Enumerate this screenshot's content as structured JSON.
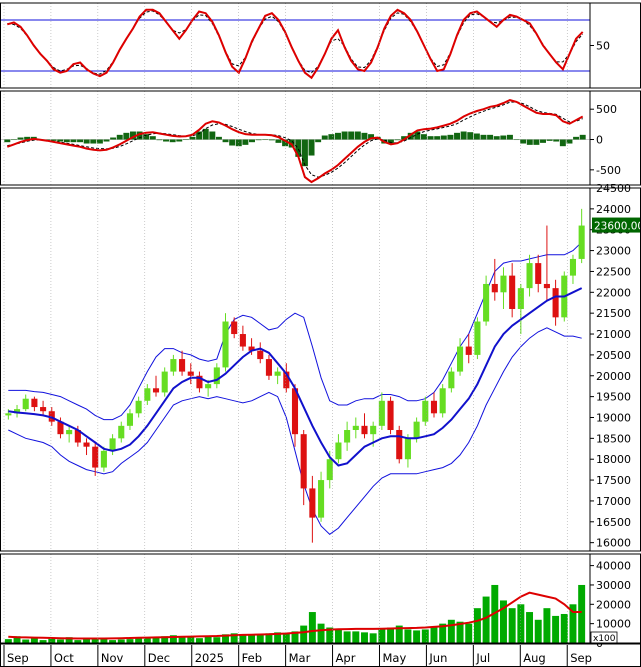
{
  "chart_data": {
    "type": "candlestick",
    "months": [
      "Sep",
      "Oct",
      "Nov",
      "Dec",
      "2025",
      "Feb",
      "Mar",
      "Apr",
      "May",
      "Jun",
      "Jul",
      "Aug",
      "Sep"
    ],
    "colors": {
      "up": "#66dd22",
      "down": "#dd1111",
      "bands": "#1111dd",
      "ma": "#1111cc",
      "lines": "#dd0000",
      "hist": "#116611",
      "volume": "#00aa00",
      "last_price_bg": "#006600",
      "last_price_fg": "#ffffff"
    },
    "oscillator": {
      "ticks": [
        50
      ],
      "ylim": [
        0,
        100
      ],
      "levels": [
        20,
        80
      ],
      "values": [
        75,
        77,
        72,
        62,
        50,
        40,
        32,
        22,
        18,
        20,
        28,
        30,
        22,
        17,
        14,
        18,
        30,
        45,
        58,
        70,
        84,
        92,
        92,
        88,
        78,
        68,
        58,
        68,
        80,
        90,
        88,
        78,
        62,
        42,
        25,
        18,
        35,
        55,
        70,
        85,
        88,
        80,
        66,
        48,
        32,
        18,
        12,
        24,
        40,
        58,
        68,
        48,
        32,
        22,
        20,
        30,
        48,
        70,
        85,
        92,
        88,
        80,
        66,
        50,
        34,
        20,
        22,
        40,
        62,
        80,
        88,
        90,
        84,
        78,
        72,
        80,
        86,
        84,
        80,
        76,
        64,
        50,
        40,
        30,
        22,
        40,
        58,
        66
      ]
    },
    "macd": {
      "ticks": [
        500,
        0,
        -500
      ],
      "ylim": [
        -750,
        800
      ],
      "values": [
        -120,
        -80,
        -40,
        -10,
        10,
        -5,
        -20,
        -40,
        -60,
        -80,
        -100,
        -120,
        -150,
        -170,
        -180,
        -170,
        -130,
        -80,
        -20,
        40,
        90,
        110,
        120,
        100,
        80,
        60,
        50,
        55,
        80,
        160,
        260,
        300,
        280,
        230,
        170,
        120,
        90,
        80,
        80,
        80,
        70,
        40,
        -20,
        -80,
        -280,
        -620,
        -700,
        -640,
        -560,
        -500,
        -420,
        -320,
        -220,
        -120,
        -40,
        20,
        30,
        -40,
        -80,
        -60,
        0,
        80,
        150,
        170,
        180,
        200,
        230,
        260,
        310,
        380,
        430,
        470,
        500,
        540,
        560,
        600,
        650,
        620,
        560,
        500,
        440,
        420,
        420,
        400,
        300,
        260,
        320,
        380
      ],
      "signal": [
        -100,
        -80,
        -55,
        -30,
        -10,
        -5,
        -15,
        -30,
        -45,
        -60,
        -80,
        -100,
        -120,
        -140,
        -150,
        -155,
        -145,
        -115,
        -70,
        -20,
        30,
        70,
        95,
        105,
        95,
        80,
        65,
        55,
        60,
        100,
        180,
        240,
        260,
        250,
        215,
        170,
        130,
        100,
        85,
        80,
        76,
        65,
        30,
        -20,
        -150,
        -420,
        -580,
        -620,
        -590,
        -540,
        -470,
        -380,
        -280,
        -180,
        -90,
        -20,
        10,
        -10,
        -50,
        -55,
        -25,
        30,
        90,
        130,
        155,
        175,
        200,
        225,
        260,
        320,
        375,
        425,
        465,
        505,
        535,
        570,
        615,
        620,
        590,
        540,
        480,
        445,
        430,
        415,
        350,
        290,
        300,
        345
      ]
    },
    "price": {
      "ticks": [
        24500,
        24000,
        23500,
        23000,
        22500,
        22000,
        21500,
        21000,
        20500,
        20000,
        19500,
        19000,
        18500,
        18000,
        17500,
        17000,
        16500,
        16000
      ],
      "ylim": [
        15800,
        24500
      ],
      "last_price": "23600.00",
      "candles": [
        [
          19050,
          19200,
          18950,
          19100
        ],
        [
          19100,
          19300,
          19000,
          19200
        ],
        [
          19200,
          19550,
          19150,
          19450
        ],
        [
          19450,
          19500,
          19150,
          19250
        ],
        [
          19250,
          19400,
          19050,
          19150
        ],
        [
          19150,
          19250,
          18800,
          18900
        ],
        [
          18900,
          19000,
          18500,
          18600
        ],
        [
          18600,
          18800,
          18400,
          18700
        ],
        [
          18700,
          18800,
          18300,
          18400
        ],
        [
          18400,
          18500,
          18100,
          18300
        ],
        [
          18300,
          18400,
          17600,
          17800
        ],
        [
          17800,
          18300,
          17700,
          18200
        ],
        [
          18200,
          18600,
          18100,
          18500
        ],
        [
          18500,
          18900,
          18400,
          18800
        ],
        [
          18800,
          19200,
          18700,
          19100
        ],
        [
          19100,
          19500,
          19000,
          19400
        ],
        [
          19400,
          19800,
          19300,
          19700
        ],
        [
          19700,
          20000,
          19500,
          19600
        ],
        [
          19600,
          20200,
          19500,
          20100
        ],
        [
          20100,
          20500,
          20000,
          20400
        ],
        [
          20400,
          20600,
          20000,
          20100
        ],
        [
          20100,
          20300,
          19800,
          20000
        ],
        [
          20000,
          20100,
          19600,
          19700
        ],
        [
          19700,
          19900,
          19500,
          19800
        ],
        [
          19800,
          20300,
          19700,
          20200
        ],
        [
          20200,
          21500,
          20100,
          21300
        ],
        [
          21300,
          21400,
          20900,
          21000
        ],
        [
          21000,
          21200,
          20600,
          20700
        ],
        [
          20700,
          20900,
          20500,
          20600
        ],
        [
          20600,
          20800,
          20300,
          20400
        ],
        [
          20400,
          20500,
          19900,
          20000
        ],
        [
          20000,
          20200,
          19800,
          20100
        ],
        [
          20100,
          20300,
          19600,
          19700
        ],
        [
          19700,
          19800,
          18300,
          18600
        ],
        [
          18600,
          18700,
          16900,
          17300
        ],
        [
          17300,
          17600,
          16000,
          16600
        ],
        [
          16600,
          17700,
          16500,
          17500
        ],
        [
          17500,
          18200,
          17300,
          18000
        ],
        [
          18000,
          18600,
          17900,
          18400
        ],
        [
          18400,
          18900,
          18200,
          18700
        ],
        [
          18700,
          19000,
          18500,
          18800
        ],
        [
          18800,
          19100,
          18500,
          18600
        ],
        [
          18600,
          18900,
          18300,
          18800
        ],
        [
          18800,
          19600,
          18700,
          19400
        ],
        [
          19400,
          19500,
          18600,
          18700
        ],
        [
          18700,
          18800,
          17900,
          18000
        ],
        [
          18000,
          18600,
          17800,
          18500
        ],
        [
          18500,
          19000,
          18400,
          18900
        ],
        [
          18900,
          19500,
          18800,
          19400
        ],
        [
          19400,
          19600,
          19000,
          19100
        ],
        [
          19100,
          19800,
          19000,
          19700
        ],
        [
          19700,
          20200,
          19600,
          20100
        ],
        [
          20100,
          20900,
          20000,
          20700
        ],
        [
          20700,
          21000,
          20300,
          20500
        ],
        [
          20500,
          21400,
          20400,
          21300
        ],
        [
          21300,
          22400,
          21200,
          22200
        ],
        [
          22200,
          22800,
          21800,
          22000
        ],
        [
          22000,
          22600,
          21600,
          22400
        ],
        [
          22400,
          22700,
          21400,
          21600
        ],
        [
          21600,
          22200,
          21000,
          22100
        ],
        [
          22100,
          22900,
          21900,
          22700
        ],
        [
          22700,
          22900,
          22000,
          22200
        ],
        [
          22200,
          23600,
          21800,
          22100
        ],
        [
          22100,
          22300,
          21200,
          21400
        ],
        [
          21400,
          22500,
          21300,
          22400
        ],
        [
          22400,
          22900,
          22200,
          22800
        ],
        [
          22800,
          24000,
          22700,
          23600
        ]
      ],
      "ma": [
        19150,
        19120,
        19100,
        19080,
        19050,
        19000,
        18900,
        18800,
        18700,
        18550,
        18400,
        18250,
        18200,
        18250,
        18350,
        18550,
        18800,
        19100,
        19400,
        19700,
        19850,
        19950,
        19950,
        19850,
        19900,
        20050,
        20250,
        20450,
        20600,
        20650,
        20550,
        20300,
        20050,
        19700,
        19250,
        18800,
        18400,
        18050,
        17850,
        17900,
        18100,
        18300,
        18400,
        18500,
        18550,
        18550,
        18500,
        18500,
        18550,
        18600,
        18750,
        18950,
        19200,
        19450,
        19800,
        20250,
        20700,
        21000,
        21200,
        21350,
        21500,
        21650,
        21800,
        21900,
        21900,
        22000,
        22100
      ],
      "upper": [
        19650,
        19650,
        19650,
        19620,
        19600,
        19550,
        19500,
        19400,
        19300,
        19200,
        19050,
        18950,
        18950,
        19050,
        19300,
        19700,
        20100,
        20450,
        20650,
        20650,
        20550,
        20500,
        20400,
        20350,
        20400,
        21000,
        21350,
        21450,
        21400,
        21250,
        21100,
        21150,
        21350,
        21500,
        21400,
        20700,
        19950,
        19400,
        19300,
        19300,
        19400,
        19450,
        19450,
        19550,
        19550,
        19500,
        19400,
        19400,
        19450,
        19600,
        19900,
        20300,
        20700,
        21000,
        21500,
        22000,
        22500,
        22700,
        22750,
        22750,
        22800,
        22850,
        22900,
        22900,
        22900,
        23000,
        23200
      ],
      "lower": [
        18700,
        18600,
        18500,
        18450,
        18400,
        18300,
        18100,
        17950,
        17850,
        17750,
        17700,
        17650,
        17700,
        17900,
        18050,
        18200,
        18400,
        18700,
        19000,
        19300,
        19400,
        19450,
        19500,
        19450,
        19500,
        19450,
        19400,
        19350,
        19400,
        19500,
        19600,
        19500,
        19000,
        18200,
        17400,
        16800,
        16400,
        16200,
        16350,
        16600,
        16850,
        17100,
        17350,
        17550,
        17650,
        17650,
        17650,
        17650,
        17700,
        17750,
        17800,
        17900,
        18100,
        18400,
        18800,
        19300,
        19700,
        20100,
        20450,
        20700,
        20900,
        21050,
        21150,
        21050,
        20950,
        20950,
        20900
      ]
    },
    "volume": {
      "ticks": [
        40000,
        30000,
        20000,
        10000,
        0
      ],
      "ylim": [
        0,
        46000
      ],
      "unit_label": "x100",
      "values": [
        2000,
        3500,
        1800,
        2500,
        1500,
        2200,
        1800,
        3000,
        1500,
        2000,
        1800,
        2500,
        1500,
        1800,
        2000,
        2500,
        3000,
        2800,
        3500,
        4000,
        3500,
        3000,
        2500,
        3500,
        3000,
        4500,
        5000,
        4500,
        4000,
        4500,
        5000,
        5500,
        5000,
        6000,
        9000,
        16000,
        10000,
        8000,
        7000,
        6000,
        6000,
        5500,
        5000,
        7000,
        8000,
        9000,
        7000,
        6500,
        7000,
        8000,
        10000,
        12000,
        11000,
        10000,
        18000,
        24000,
        30000,
        22000,
        18000,
        20000,
        16000,
        12000,
        18000,
        14000,
        15000,
        20000,
        30000
      ],
      "ma": [
        3200,
        3000,
        2900,
        2800,
        2700,
        2600,
        2500,
        2400,
        2300,
        2300,
        2300,
        2300,
        2400,
        2500,
        2600,
        2700,
        2800,
        2900,
        3000,
        3100,
        3200,
        3300,
        3400,
        3500,
        3600,
        3800,
        4000,
        4200,
        4300,
        4400,
        4500,
        4700,
        4900,
        5200,
        5600,
        6200,
        6600,
        6900,
        7100,
        7200,
        7300,
        7300,
        7300,
        7400,
        7500,
        7600,
        7700,
        7800,
        8000,
        8300,
        8700,
        9200,
        9800,
        10500,
        11500,
        13000,
        15500,
        18000,
        21000,
        24000,
        26000,
        25000,
        24000,
        23000,
        20000,
        16000,
        16000
      ]
    }
  }
}
